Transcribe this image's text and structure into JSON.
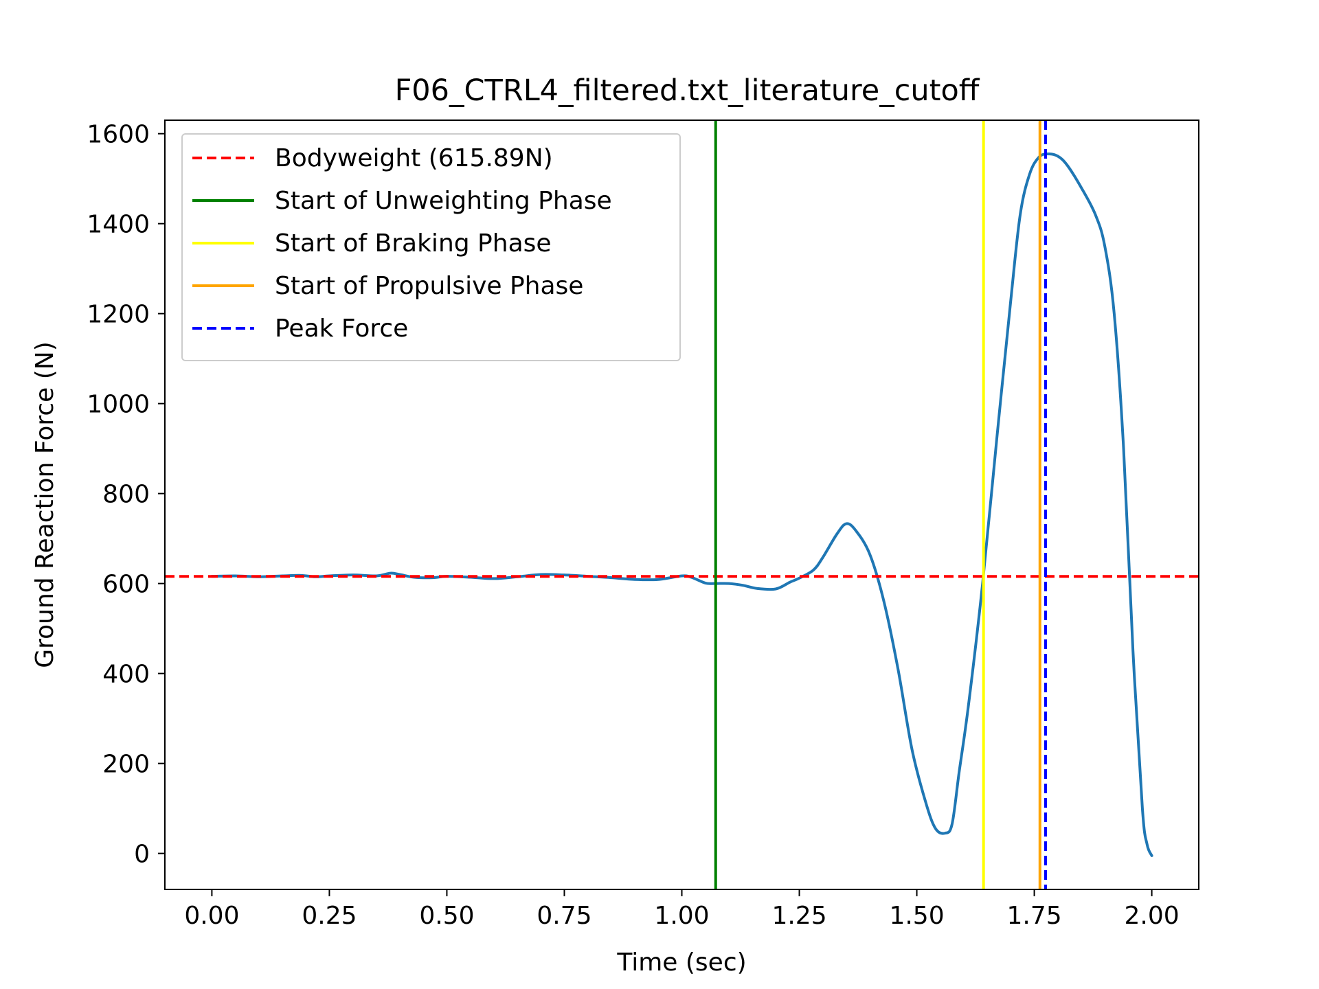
{
  "chart_data": {
    "type": "line",
    "title": "F06_CTRL4_filtered.txt_literature_cutoff",
    "xlabel": "Time (sec)",
    "ylabel": "Ground Reaction Force (N)",
    "xlim": [
      -0.1,
      2.1
    ],
    "ylim": [
      -80,
      1630
    ],
    "xticks": [
      0.0,
      0.25,
      0.5,
      0.75,
      1.0,
      1.25,
      1.5,
      1.75,
      2.0
    ],
    "xtick_labels": [
      "0.00",
      "0.25",
      "0.50",
      "0.75",
      "1.00",
      "1.25",
      "1.50",
      "1.75",
      "2.00"
    ],
    "yticks": [
      0,
      200,
      400,
      600,
      800,
      1000,
      1200,
      1400,
      1600
    ],
    "ytick_labels": [
      "0",
      "200",
      "400",
      "600",
      "800",
      "1000",
      "1200",
      "1400",
      "1600"
    ],
    "grid": false,
    "legend_position": "upper-left",
    "series": [
      {
        "color": "#1f77b4",
        "x": [
          0.0,
          0.05,
          0.1,
          0.15,
          0.19,
          0.22,
          0.25,
          0.3,
          0.35,
          0.38,
          0.4,
          0.43,
          0.47,
          0.5,
          0.55,
          0.6,
          0.65,
          0.7,
          0.75,
          0.8,
          0.85,
          0.9,
          0.95,
          1.0,
          1.02,
          1.05,
          1.07,
          1.1,
          1.13,
          1.16,
          1.2,
          1.23,
          1.25,
          1.28,
          1.3,
          1.33,
          1.35,
          1.37,
          1.4,
          1.43,
          1.46,
          1.49,
          1.52,
          1.54,
          1.56,
          1.575,
          1.59,
          1.61,
          1.64,
          1.67,
          1.7,
          1.72,
          1.74,
          1.76,
          1.78,
          1.8,
          1.82,
          1.85,
          1.88,
          1.9,
          1.92,
          1.94,
          1.96,
          1.98,
          1.99,
          2.0
        ],
        "y": [
          616,
          617,
          615,
          617,
          618,
          615,
          617,
          619,
          617,
          623,
          620,
          614,
          613,
          616,
          614,
          611,
          615,
          620,
          619,
          616,
          613,
          609,
          609,
          617,
          614,
          601,
          600,
          600,
          596,
          589,
          588,
          603,
          612,
          630,
          658,
          710,
          733,
          718,
          665,
          560,
          410,
          230,
          110,
          55,
          45,
          65,
          180,
          330,
          600,
          920,
          1230,
          1420,
          1510,
          1548,
          1555,
          1550,
          1530,
          1480,
          1420,
          1350,
          1200,
          900,
          450,
          100,
          20,
          -5
        ]
      }
    ],
    "annotations": [
      {
        "kind": "hline",
        "label": "Bodyweight (615.89N)",
        "value": 615.89,
        "color": "#ff0000",
        "style": "dashed"
      },
      {
        "kind": "vline",
        "label": "Start of Unweighting Phase",
        "value": 1.072,
        "color": "#008000",
        "style": "solid"
      },
      {
        "kind": "vline",
        "label": "Start of Braking Phase",
        "value": 1.642,
        "color": "#ffff00",
        "style": "solid"
      },
      {
        "kind": "vline",
        "label": "Start of Propulsive Phase",
        "value": 1.762,
        "color": "#ffa500",
        "style": "solid"
      },
      {
        "kind": "vline",
        "label": "Peak Force",
        "value": 1.774,
        "color": "#0000ff",
        "style": "dashed"
      }
    ]
  }
}
